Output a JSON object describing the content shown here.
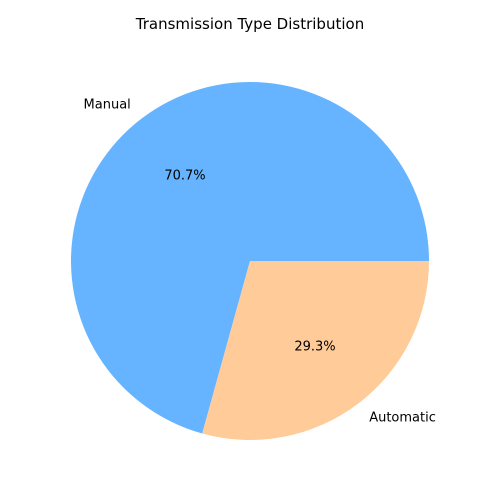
{
  "chart_data": {
    "type": "pie",
    "title": "Transmission Type Distribution",
    "slices": [
      {
        "label": "Manual",
        "value": 70.7,
        "pct_label": "70.7%",
        "color": "#66b3ff"
      },
      {
        "label": "Automatic",
        "value": 29.3,
        "pct_label": "29.3%",
        "color": "#ffcc99"
      }
    ],
    "start_angle_deg": 0,
    "direction": "counterclockwise",
    "legend": "none"
  }
}
